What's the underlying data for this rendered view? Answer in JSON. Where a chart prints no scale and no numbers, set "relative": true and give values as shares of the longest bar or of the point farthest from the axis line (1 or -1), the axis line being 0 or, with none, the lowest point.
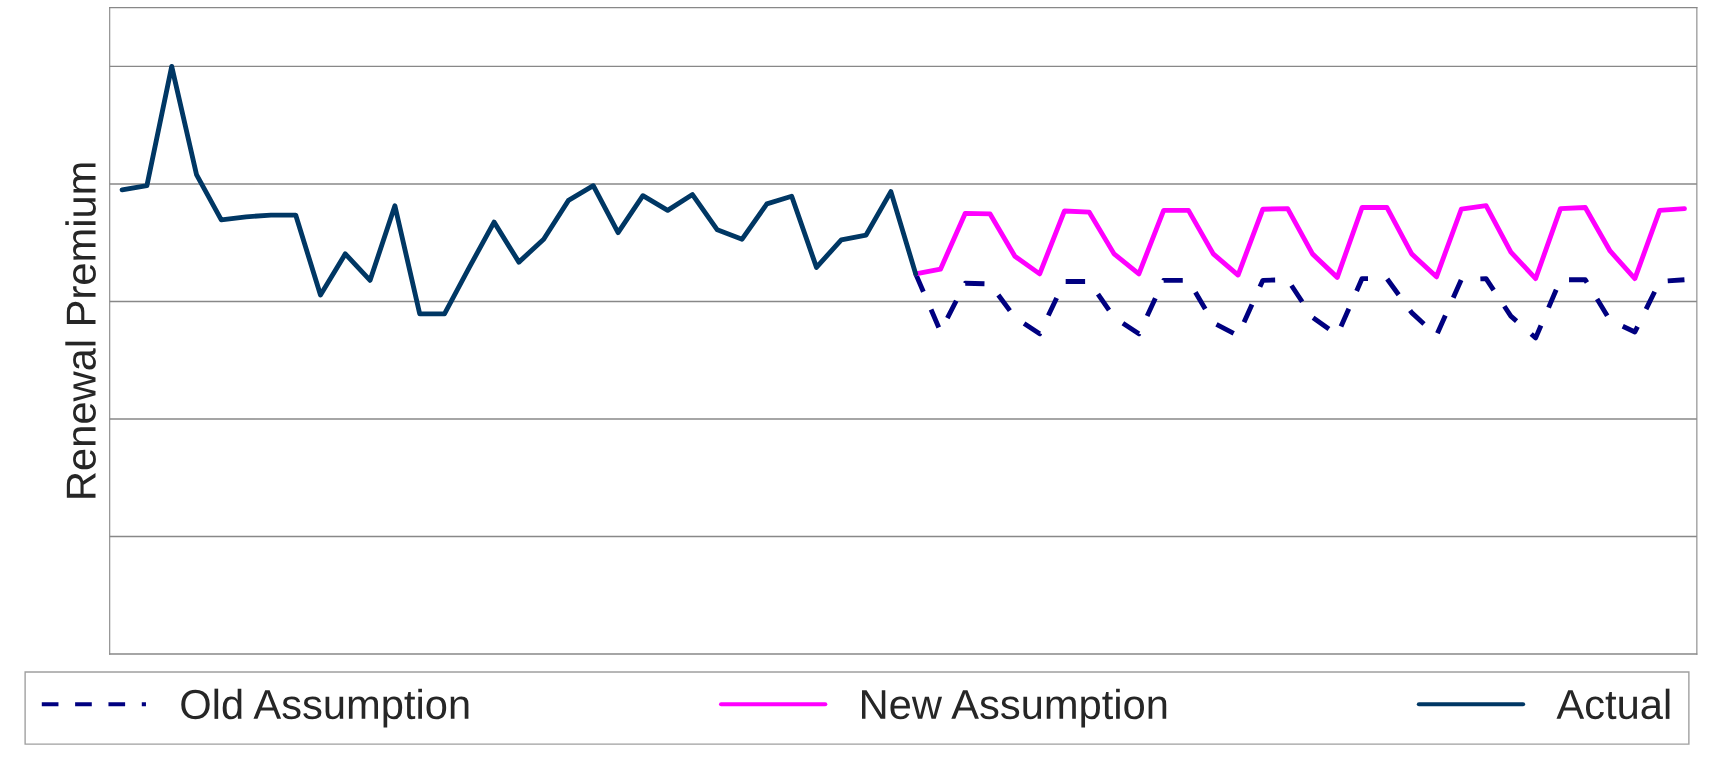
{
  "chart_data": {
    "type": "line",
    "ylabel": "Renewal Premium",
    "relative": true,
    "grid": "y",
    "tick_labels": false,
    "legend": "bottom",
    "categories": [
      null,
      null,
      null,
      null,
      null,
      null,
      null,
      null,
      null,
      null,
      null,
      null,
      null,
      null,
      null,
      null,
      null,
      null,
      null,
      null,
      null,
      null,
      null,
      null,
      null,
      null,
      null,
      null,
      null,
      null,
      null,
      null,
      null,
      null,
      null,
      null,
      null,
      null,
      null,
      null,
      null,
      null,
      null,
      null,
      null,
      null,
      null,
      null,
      null,
      null,
      null,
      null,
      null,
      null,
      null,
      null,
      null,
      null,
      null,
      null,
      null,
      null,
      null,
      null
    ],
    "series": [
      {
        "name": "Old Assumption",
        "color": "#000080",
        "line_style": "dashed",
        "values": [
          null,
          null,
          null,
          null,
          null,
          null,
          null,
          null,
          null,
          null,
          null,
          null,
          null,
          null,
          null,
          null,
          null,
          null,
          null,
          null,
          null,
          null,
          null,
          null,
          null,
          null,
          null,
          null,
          null,
          null,
          null,
          null,
          0.647,
          0.549,
          0.631,
          0.63,
          0.573,
          0.545,
          0.634,
          0.634,
          0.573,
          0.545,
          0.636,
          0.636,
          0.564,
          0.542,
          0.636,
          0.637,
          0.573,
          0.543,
          0.639,
          0.639,
          0.581,
          0.542,
          0.637,
          0.639,
          0.575,
          0.538,
          0.637,
          0.637,
          0.568,
          0.548,
          0.634,
          0.637
        ]
      },
      {
        "name": "New Assumption",
        "color": "#ff00ff",
        "line_style": "solid",
        "values": [
          null,
          null,
          null,
          null,
          null,
          null,
          null,
          null,
          null,
          null,
          null,
          null,
          null,
          null,
          null,
          null,
          null,
          null,
          null,
          null,
          null,
          null,
          null,
          null,
          null,
          null,
          null,
          null,
          null,
          null,
          null,
          null,
          0.647,
          0.655,
          0.75,
          0.749,
          0.677,
          0.647,
          0.754,
          0.752,
          0.681,
          0.647,
          0.755,
          0.755,
          0.681,
          0.645,
          0.757,
          0.758,
          0.681,
          0.641,
          0.76,
          0.76,
          0.681,
          0.642,
          0.757,
          0.763,
          0.684,
          0.639,
          0.758,
          0.76,
          0.686,
          0.639,
          0.755,
          0.758
        ]
      },
      {
        "name": "Actual",
        "color": "#003764",
        "line_style": "solid",
        "values": [
          0.79,
          0.797,
          1,
          0.816,
          0.739,
          0.744,
          0.747,
          0.747,
          0.611,
          0.681,
          0.636,
          0.763,
          0.579,
          0.579,
          0.658,
          0.735,
          0.667,
          0.706,
          0.772,
          0.797,
          0.717,
          0.78,
          0.755,
          0.782,
          0.722,
          0.706,
          0.766,
          0.779,
          0.658,
          0.705,
          0.713,
          0.787,
          0.647,
          null,
          null,
          null,
          null,
          null,
          null,
          null,
          null,
          null,
          null,
          null,
          null,
          null,
          null,
          null,
          null,
          null,
          null,
          null,
          null,
          null,
          null,
          null,
          null,
          null,
          null,
          null,
          null,
          null,
          null,
          null
        ]
      }
    ]
  }
}
